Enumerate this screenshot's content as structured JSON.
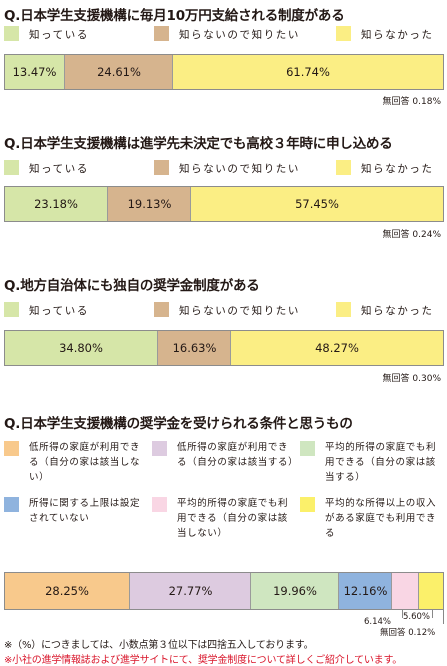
{
  "chart_data": [
    {
      "type": "bar",
      "title": "Q.日本学生支援機構に毎月10万円支給される制度がある",
      "legend": [
        "知っている",
        "知らないので知りたい",
        "知らなかった"
      ],
      "series": [
        {
          "name": "知っている",
          "value": 13.47,
          "label": "13.47%",
          "color": "#d6e6a8"
        },
        {
          "name": "知らないので知りたい",
          "value": 24.61,
          "label": "24.61%",
          "color": "#d6b48e"
        },
        {
          "name": "知らなかった",
          "value": 61.74,
          "label": "61.74%",
          "color": "#fbee84"
        }
      ],
      "no_answer": "無回答 0.18%"
    },
    {
      "type": "bar",
      "title": "Q.日本学生支援機構は進学先未決定でも高校３年時に申し込める",
      "legend": [
        "知っている",
        "知らないので知りたい",
        "知らなかった"
      ],
      "series": [
        {
          "name": "知っている",
          "value": 23.18,
          "label": "23.18%",
          "color": "#d6e6a8"
        },
        {
          "name": "知らないので知りたい",
          "value": 19.13,
          "label": "19.13%",
          "color": "#d6b48e"
        },
        {
          "name": "知らなかった",
          "value": 57.45,
          "label": "57.45%",
          "color": "#fbee84"
        }
      ],
      "no_answer": "無回答 0.24%"
    },
    {
      "type": "bar",
      "title": "Q.地方自治体にも独自の奨学金制度がある",
      "legend": [
        "知っている",
        "知らないので知りたい",
        "知らなかった"
      ],
      "series": [
        {
          "name": "知っている",
          "value": 34.8,
          "label": "34.80%",
          "color": "#d6e6a8"
        },
        {
          "name": "知らないので知りたい",
          "value": 16.63,
          "label": "16.63%",
          "color": "#d6b48e"
        },
        {
          "name": "知らなかった",
          "value": 48.27,
          "label": "48.27%",
          "color": "#fbee84"
        }
      ],
      "no_answer": "無回答 0.30%"
    },
    {
      "type": "bar",
      "title": "Q.日本学生支援機構の奨学金を受けられる条件と思うもの",
      "legend": [
        "低所得の家庭が利用できる（自分の家は該当しない）",
        "低所得の家庭が利用できる（自分の家は該当する）",
        "平均的所得の家庭でも利用できる（自分の家は該当する）",
        "所得に関する上限は設定されていない",
        "平均的所得の家庭でも利用できる（自分の家は該当しない）",
        "平均的な所得以上の収入がある家庭でも利用できる"
      ],
      "series": [
        {
          "name": "低所得の家庭が利用できる（自分の家は該当しない）",
          "value": 28.25,
          "label": "28.25%",
          "color": "#f8c98c"
        },
        {
          "name": "低所得の家庭が利用できる（自分の家は該当する）",
          "value": 27.77,
          "label": "27.77%",
          "color": "#ddcbe0"
        },
        {
          "name": "平均的所得の家庭でも利用できる（自分の家は該当する）",
          "value": 19.96,
          "label": "19.96%",
          "color": "#cfe6c0"
        },
        {
          "name": "所得に関する上限は設定されていない",
          "value": 12.16,
          "label": "12.16%",
          "color": "#8fb3de"
        },
        {
          "name": "平均的所得の家庭でも利用できる（自分の家は該当しない）",
          "value": 6.14,
          "label": "6.14%",
          "color": "#f9d6e4"
        },
        {
          "name": "平均的な所得以上の収入がある家庭でも利用できる",
          "value": 5.6,
          "label": "5.60%",
          "color": "#fbf06a"
        }
      ],
      "no_answer": "無回答 0.12%"
    }
  ],
  "footnotes": [
    "※（%）につきましては、小数点第３位以下は四捨五入しております。",
    "※小社の進学情報誌および進学サイトにて、奨学金制度について詳しくご紹介しています。"
  ],
  "colors": {
    "footnote_accent": "#d9162b",
    "bar_border": "#8c8c8c"
  }
}
